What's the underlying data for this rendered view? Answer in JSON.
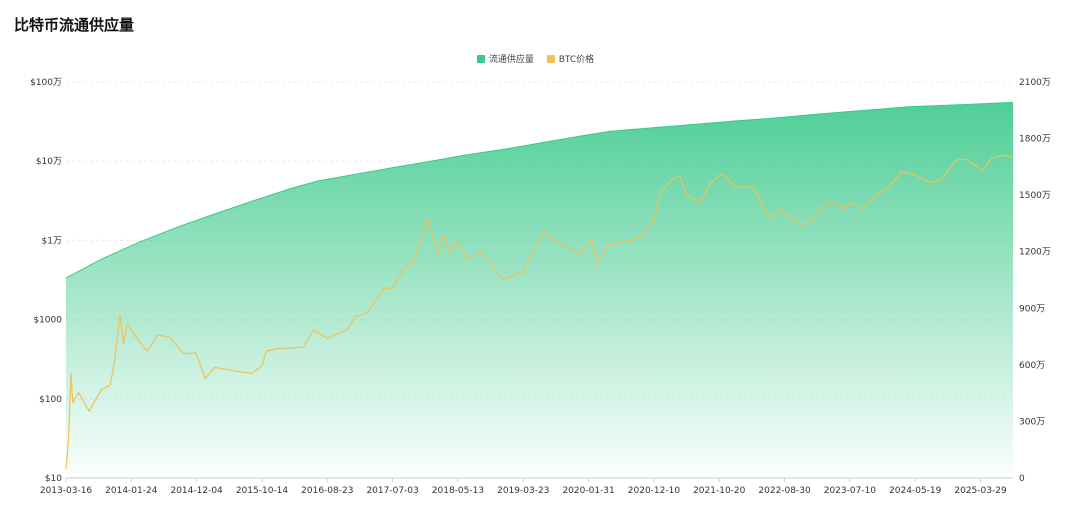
{
  "title": "比特币流通供应量",
  "chart_data": {
    "type": "area",
    "title": "比特币流通供应量",
    "legend_position": "top-center",
    "grid": true,
    "x_ticks": [
      "2013-03-16",
      "2014-01-24",
      "2014-12-04",
      "2015-10-14",
      "2016-08-23",
      "2017-07-03",
      "2018-05-13",
      "2019-03-23",
      "2020-01-31",
      "2020-12-10",
      "2021-10-20",
      "2022-08-30",
      "2023-07-10",
      "2024-05-19",
      "2025-03-29"
    ],
    "x_range": [
      "2013-03-16",
      "2025-09-01"
    ],
    "left_axis": {
      "scale": "log",
      "range": [
        10,
        1000000
      ],
      "ticks": [
        "$10",
        "$100",
        "$1000",
        "$1万",
        "$10万",
        "$100万"
      ]
    },
    "right_axis": {
      "scale": "linear",
      "range": [
        0,
        21000000
      ],
      "ticks": [
        "0",
        "300万",
        "600万",
        "900万",
        "1200万",
        "1500万",
        "1800万",
        "2100万"
      ]
    },
    "series": [
      {
        "name": "流通供应量",
        "type": "area",
        "axis": "right",
        "color": "#3cc98b",
        "points": [
          [
            "2013-03-16",
            10600000
          ],
          [
            "2013-09-01",
            11600000
          ],
          [
            "2014-03-01",
            12500000
          ],
          [
            "2014-09-01",
            13300000
          ],
          [
            "2015-03-01",
            14000000
          ],
          [
            "2015-09-01",
            14700000
          ],
          [
            "2016-03-01",
            15350000
          ],
          [
            "2016-07-09",
            15750000
          ],
          [
            "2017-01-01",
            16100000
          ],
          [
            "2017-07-01",
            16450000
          ],
          [
            "2018-01-01",
            16800000
          ],
          [
            "2018-07-01",
            17150000
          ],
          [
            "2019-01-01",
            17450000
          ],
          [
            "2019-07-01",
            17800000
          ],
          [
            "2020-01-01",
            18150000
          ],
          [
            "2020-05-11",
            18380000
          ],
          [
            "2021-01-01",
            18600000
          ],
          [
            "2021-07-01",
            18760000
          ],
          [
            "2022-01-01",
            18930000
          ],
          [
            "2022-07-01",
            19080000
          ],
          [
            "2023-01-01",
            19260000
          ],
          [
            "2023-07-01",
            19430000
          ],
          [
            "2024-01-01",
            19590000
          ],
          [
            "2024-04-20",
            19690000
          ],
          [
            "2025-01-01",
            19800000
          ],
          [
            "2025-09-01",
            19920000
          ]
        ]
      },
      {
        "name": "BTC价格",
        "type": "line",
        "axis": "left",
        "color": "#f0c05a",
        "points": [
          [
            "2013-03-16",
            13
          ],
          [
            "2013-03-28",
            30
          ],
          [
            "2013-04-09",
            210
          ],
          [
            "2013-04-17",
            90
          ],
          [
            "2013-05-15",
            120
          ],
          [
            "2013-07-05",
            70
          ],
          [
            "2013-09-01",
            130
          ],
          [
            "2013-10-15",
            150
          ],
          [
            "2013-11-05",
            300
          ],
          [
            "2013-11-30",
            1150
          ],
          [
            "2013-12-18",
            500
          ],
          [
            "2014-01-05",
            900
          ],
          [
            "2014-02-25",
            550
          ],
          [
            "2014-04-10",
            400
          ],
          [
            "2014-06-01",
            640
          ],
          [
            "2014-08-01",
            590
          ],
          [
            "2014-10-01",
            370
          ],
          [
            "2014-12-01",
            380
          ],
          [
            "2015-01-14",
            180
          ],
          [
            "2015-03-01",
            250
          ],
          [
            "2015-06-01",
            225
          ],
          [
            "2015-08-25",
            210
          ],
          [
            "2015-10-14",
            260
          ],
          [
            "2015-11-04",
            400
          ],
          [
            "2016-01-01",
            430
          ],
          [
            "2016-05-01",
            450
          ],
          [
            "2016-06-17",
            740
          ],
          [
            "2016-08-23",
            580
          ],
          [
            "2016-12-01",
            760
          ],
          [
            "2017-01-04",
            1100
          ],
          [
            "2017-03-01",
            1200
          ],
          [
            "2017-05-25",
            2500
          ],
          [
            "2017-07-03",
            2500
          ],
          [
            "2017-09-01",
            4700
          ],
          [
            "2017-10-15",
            5600
          ],
          [
            "2017-12-17",
            19000
          ],
          [
            "2018-02-06",
            6900
          ],
          [
            "2018-03-05",
            11500
          ],
          [
            "2018-04-06",
            6800
          ],
          [
            "2018-05-05",
            9700
          ],
          [
            "2018-06-29",
            5900
          ],
          [
            "2018-09-01",
            7100
          ],
          [
            "2018-11-25",
            3800
          ],
          [
            "2018-12-15",
            3200
          ],
          [
            "2019-03-23",
            4000
          ],
          [
            "2019-05-15",
            8000
          ],
          [
            "2019-06-26",
            12800
          ],
          [
            "2019-09-01",
            9600
          ],
          [
            "2019-12-17",
            6600
          ],
          [
            "2020-02-13",
            10300
          ],
          [
            "2020-03-12",
            5000
          ],
          [
            "2020-05-01",
            8800
          ],
          [
            "2020-07-25",
            9700
          ],
          [
            "2020-10-01",
            10600
          ],
          [
            "2020-12-10",
            18000
          ],
          [
            "2021-01-08",
            40000
          ],
          [
            "2021-03-13",
            61000
          ],
          [
            "2021-04-14",
            63500
          ],
          [
            "2021-05-19",
            37000
          ],
          [
            "2021-07-20",
            29800
          ],
          [
            "2021-09-07",
            52000
          ],
          [
            "2021-10-20",
            66000
          ],
          [
            "2021-11-10",
            67500
          ],
          [
            "2022-01-01",
            47000
          ],
          [
            "2022-03-28",
            47500
          ],
          [
            "2022-05-12",
            29000
          ],
          [
            "2022-06-18",
            19000
          ],
          [
            "2022-08-14",
            24500
          ],
          [
            "2022-11-09",
            16000
          ],
          [
            "2022-12-30",
            16500
          ],
          [
            "2023-02-15",
            24500
          ],
          [
            "2023-04-14",
            30500
          ],
          [
            "2023-06-15",
            25000
          ],
          [
            "2023-07-10",
            30500
          ],
          [
            "2023-09-11",
            25000
          ],
          [
            "2023-11-01",
            35000
          ],
          [
            "2024-01-11",
            46000
          ],
          [
            "2024-03-14",
            73000
          ],
          [
            "2024-05-19",
            67000
          ],
          [
            "2024-08-05",
            53000
          ],
          [
            "2024-10-01",
            62000
          ],
          [
            "2024-11-22",
            98000
          ],
          [
            "2024-12-17",
            106000
          ],
          [
            "2025-01-20",
            105000
          ],
          [
            "2025-04-08",
            76000
          ],
          [
            "2025-05-22",
            110000
          ],
          [
            "2025-07-14",
            120000
          ],
          [
            "2025-09-01",
            110000
          ]
        ]
      }
    ]
  }
}
